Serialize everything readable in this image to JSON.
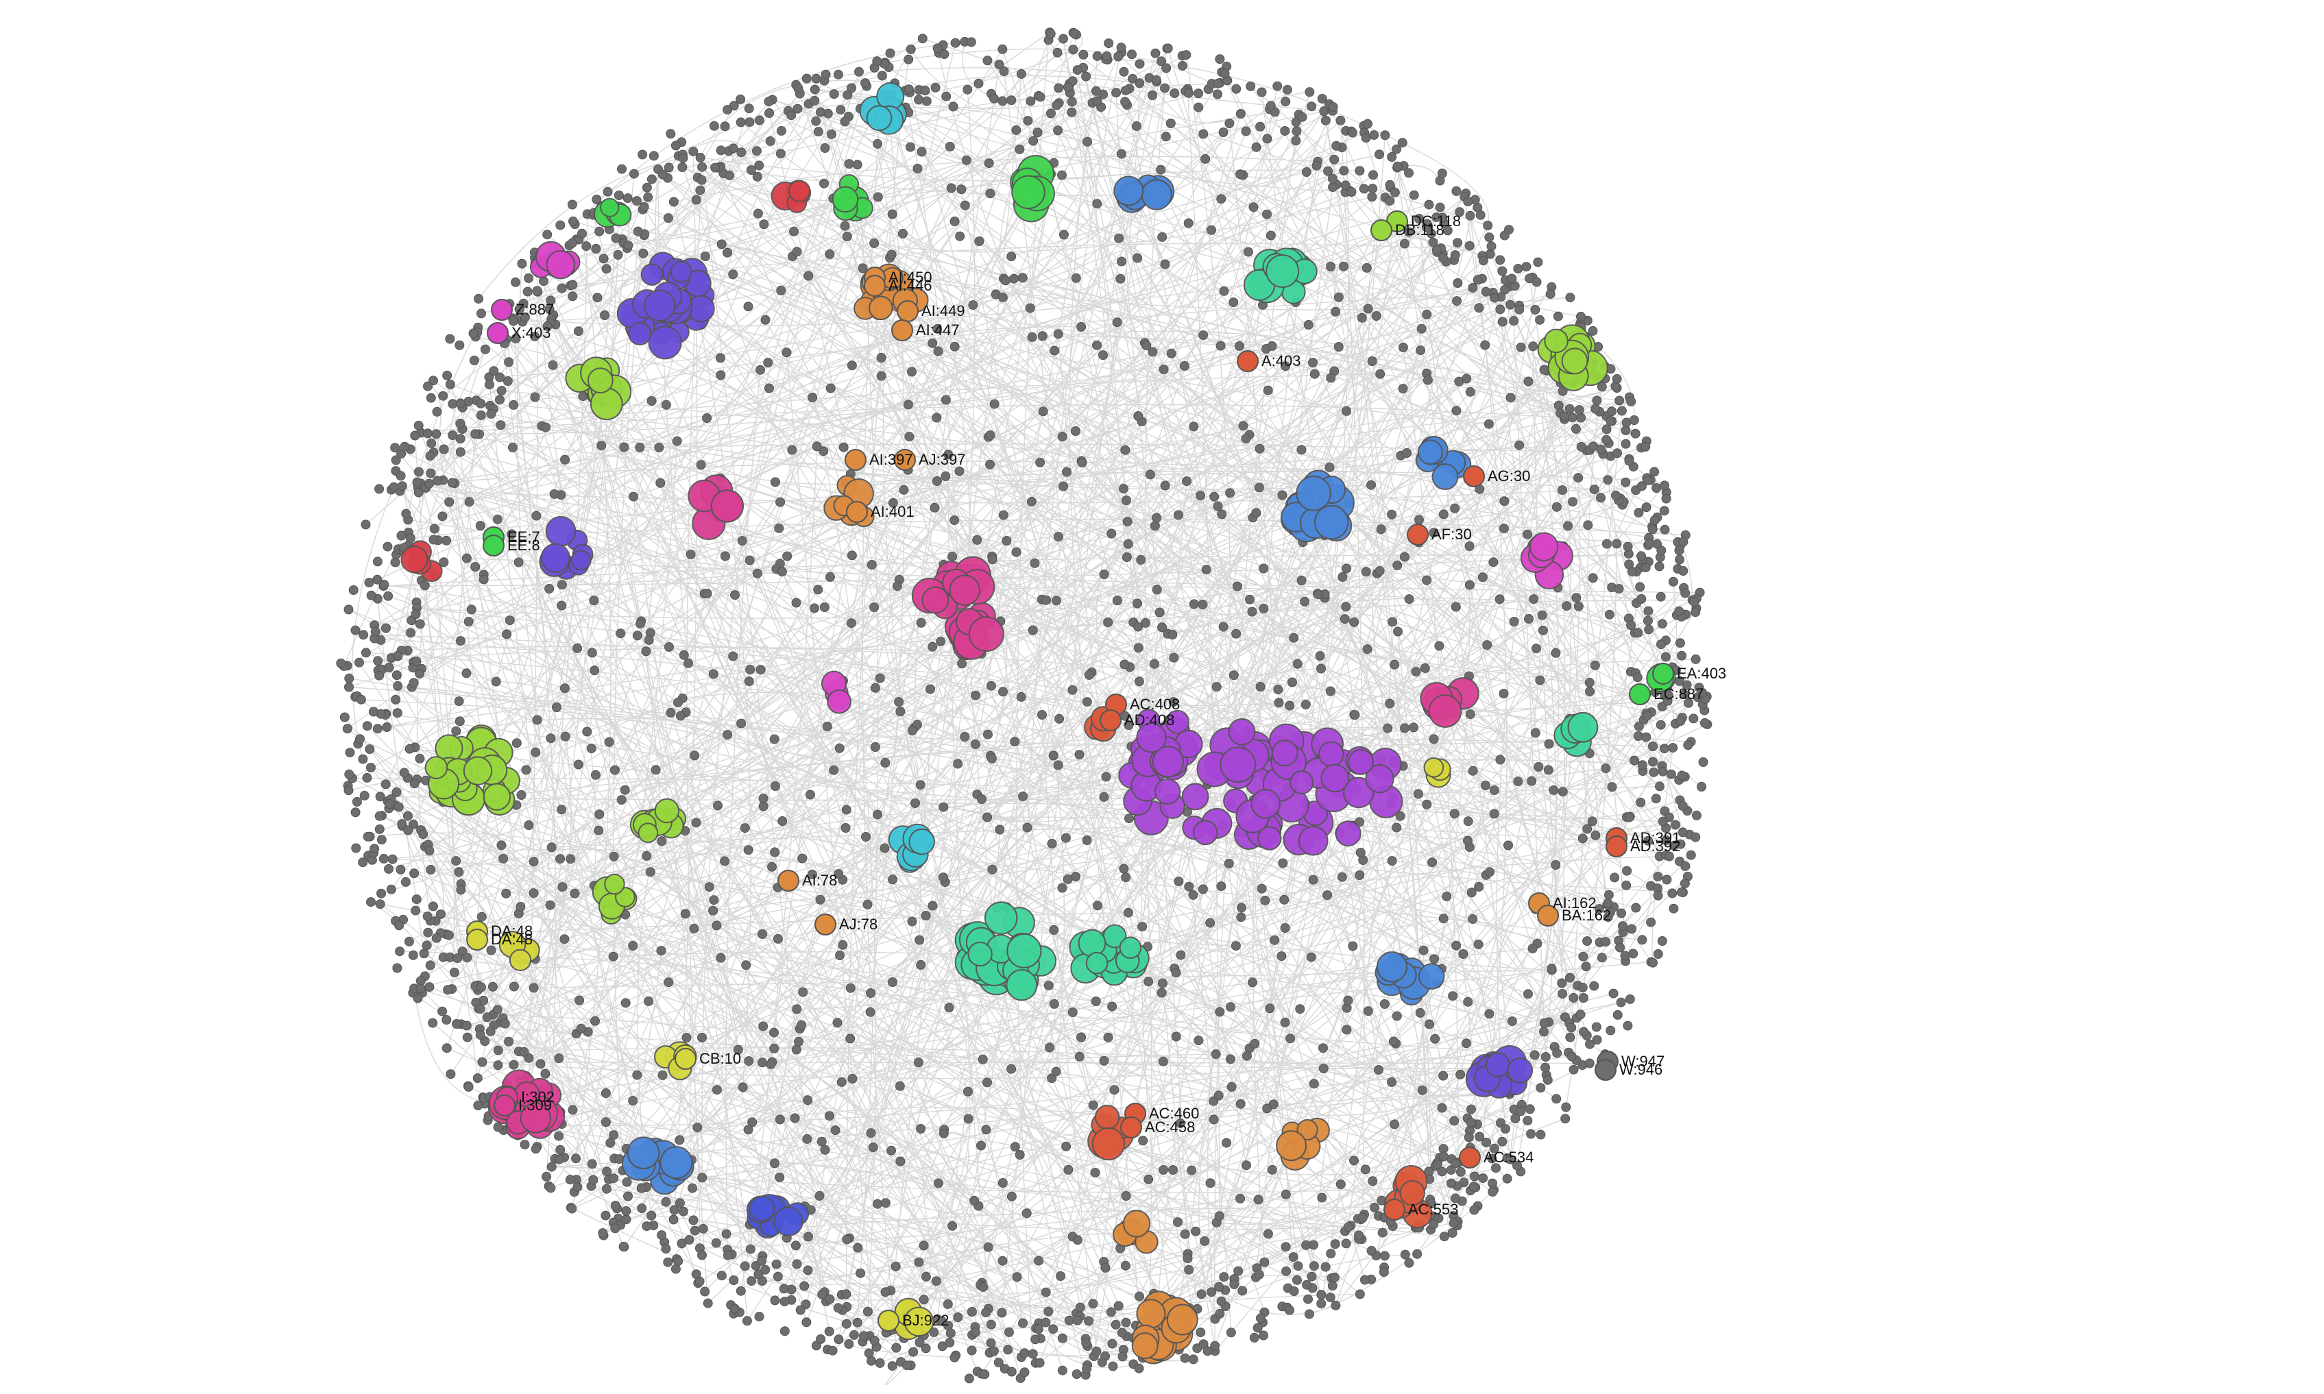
{
  "colors": {
    "background": "#ffffff",
    "default_node": "#6e6e6e",
    "default_node_stroke": "#555555",
    "edge": "#c8c8c8",
    "label_text": "#111111",
    "purple": "#a646d6",
    "violet": "#6a4fd6",
    "magenta": "#d83f92",
    "pink": "#d944c7",
    "green": "#3fd34f",
    "lime": "#97d63c",
    "yellow": "#d4d63c",
    "orange": "#dc8b3f",
    "red_orange": "#dc5a3c",
    "red": "#d93f48",
    "teal": "#3fd39a",
    "cyan": "#3fc4d6",
    "blue": "#4a86d8",
    "navy_blue": "#4a55d8"
  },
  "graph": {
    "layout": "force-directed circular",
    "labels": [
      {
        "text": "DC:118",
        "color": "lime"
      },
      {
        "text": "DB:118",
        "color": "lime"
      },
      {
        "text": "Z:887",
        "color": "pink"
      },
      {
        "text": "X:403",
        "color": "pink"
      },
      {
        "text": "AI:450",
        "color": "orange"
      },
      {
        "text": "AI:446",
        "color": "orange"
      },
      {
        "text": "AI:449",
        "color": "orange"
      },
      {
        "text": "AI:447",
        "color": "orange"
      },
      {
        "text": "A:403",
        "color": "red_orange"
      },
      {
        "text": "AI:397",
        "color": "orange"
      },
      {
        "text": "AJ:397",
        "color": "orange"
      },
      {
        "text": "AI:401",
        "color": "orange"
      },
      {
        "text": "AG:30",
        "color": "red_orange"
      },
      {
        "text": "AF:30",
        "color": "red_orange"
      },
      {
        "text": "EE:7",
        "color": "green"
      },
      {
        "text": "EE:8",
        "color": "green"
      },
      {
        "text": "EA:403",
        "color": "green"
      },
      {
        "text": "EC:887",
        "color": "green"
      },
      {
        "text": "AC:408",
        "color": "red_orange"
      },
      {
        "text": "AD:408",
        "color": "red_orange"
      },
      {
        "text": "AD:391",
        "color": "red_orange"
      },
      {
        "text": "AD:392",
        "color": "red_orange"
      },
      {
        "text": "AI:78",
        "color": "orange"
      },
      {
        "text": "AJ:78",
        "color": "orange"
      },
      {
        "text": "AI:162",
        "color": "orange"
      },
      {
        "text": "BA:162",
        "color": "orange"
      },
      {
        "text": "DA:48",
        "color": "yellow"
      },
      {
        "text": "DA:48",
        "color": "yellow"
      },
      {
        "text": "CB:10",
        "color": "yellow"
      },
      {
        "text": "W:947",
        "color": "default_node"
      },
      {
        "text": "W:946",
        "color": "default_node"
      },
      {
        "text": "I:302",
        "color": "magenta"
      },
      {
        "text": "I:309",
        "color": "magenta"
      },
      {
        "text": "AC:460",
        "color": "red_orange"
      },
      {
        "text": "AC:458",
        "color": "red_orange"
      },
      {
        "text": "AC:534",
        "color": "red_orange"
      },
      {
        "text": "AC:553",
        "color": "red_orange"
      },
      {
        "text": "BJ:922",
        "color": "yellow"
      }
    ]
  }
}
